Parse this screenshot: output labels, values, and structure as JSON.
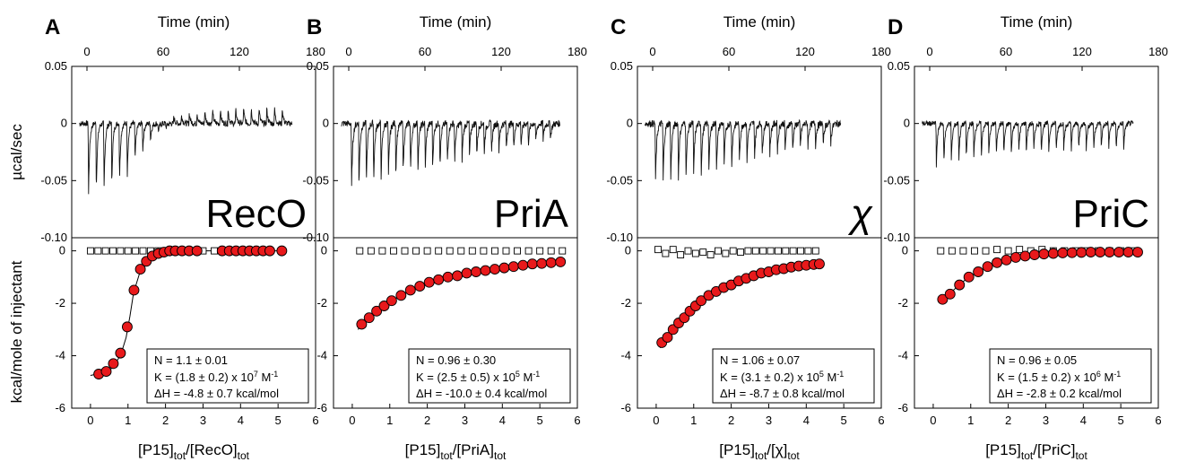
{
  "chart_data": {
    "type": "scatter",
    "shared": {
      "top_xlabel": "Time (min)",
      "top_ylabel": "µcal/sec",
      "bottom_ylabel": "kcal/mole of injectant",
      "top_xticks": [
        "0",
        "60",
        "120",
        "180"
      ],
      "top_yticks": [
        "0.05",
        "0",
        "-0.05",
        "-0.10"
      ],
      "bottom_yticks": [
        "0",
        "-2",
        "-4",
        "-6"
      ],
      "bottom_xticks": [
        "0",
        "1",
        "2",
        "3",
        "4",
        "5",
        "6"
      ],
      "top_xlim": [
        -12,
        180
      ],
      "top_ylim": [
        -0.1,
        0.05
      ],
      "bottom_xlim": [
        -0.5,
        6
      ],
      "bottom_ylim": [
        -6,
        0.5
      ]
    },
    "panels": [
      {
        "letter": "A",
        "protein_label": "RecO",
        "xlabel_pre": "[P15]",
        "xlabel_sub1": "tot",
        "xlabel_mid": "/[RecO]",
        "xlabel_sub2": "tot",
        "fit_box": {
          "line1": "N = 1.1 ± 0.01",
          "line2": "K = (1.8 ± 0.2) x 10",
          "line2_exp": "7",
          "line2_unit": " M",
          "line2_unit_exp": "-1",
          "line3": "ΔH = -4.8 ± 0.7 kcal/mol"
        },
        "injections": {
          "first_t": 1,
          "interval": 6.1,
          "count": 26,
          "noise": 0.0025
        },
        "peaks": [
          -0.082,
          -0.08,
          -0.078,
          -0.072,
          -0.066,
          -0.059,
          -0.044,
          -0.032,
          -0.02,
          -0.01,
          -0.005,
          0.008,
          0.01,
          0.012,
          0.013,
          0.014,
          0.015,
          0.016,
          0.017,
          0.017,
          0.018,
          0.018,
          0.018,
          0.018,
          0.018,
          0.018
        ],
        "filled_points": {
          "x": [
            0.22,
            0.42,
            0.61,
            0.8,
            0.98,
            1.16,
            1.33,
            1.49,
            1.65,
            1.81,
            1.96,
            2.11,
            2.26,
            2.44,
            2.63,
            2.84,
            3.51,
            3.7,
            3.88,
            4.06,
            4.24,
            4.42,
            4.6,
            4.78,
            5.1
          ],
          "y": [
            -4.7,
            -4.6,
            -4.3,
            -3.9,
            -2.9,
            -1.5,
            -0.7,
            -0.4,
            -0.2,
            -0.1,
            -0.05,
            0,
            0,
            0,
            0,
            0,
            0,
            0,
            0,
            0,
            0,
            0,
            0,
            0,
            0
          ]
        },
        "fit_line": {
          "x": [
            0.0,
            0.5,
            0.8,
            0.95,
            1.05,
            1.15,
            1.3,
            1.5,
            1.8,
            2.2,
            3.0,
            5.1
          ],
          "y": [
            -4.75,
            -4.6,
            -4.0,
            -3.3,
            -2.5,
            -1.6,
            -0.9,
            -0.4,
            -0.15,
            -0.03,
            0,
            0
          ]
        },
        "open_points": {
          "x": [
            0.0,
            0.2,
            0.4,
            0.6,
            0.8,
            1.0,
            1.2,
            1.4,
            1.6,
            1.8,
            2.0,
            2.2,
            2.4,
            2.6,
            2.8,
            3.0,
            3.3
          ],
          "y": [
            0,
            0,
            0,
            0,
            0,
            0,
            0,
            0,
            0,
            0,
            0,
            0,
            0,
            0,
            0,
            0,
            0
          ]
        }
      },
      {
        "letter": "B",
        "protein_label": "PriA",
        "xlabel_pre": "[P15]",
        "xlabel_sub1": "tot",
        "xlabel_mid": "/[PriA]",
        "xlabel_sub2": "tot",
        "fit_box": {
          "line1": "N = 0.96 ± 0.30",
          "line2": "K = (2.5 ± 0.5) x 10",
          "line2_exp": "5",
          "line2_unit": " M",
          "line2_unit_exp": "-1",
          "line3": "ΔH = -10.0 ± 0.4 kcal/mol"
        },
        "injections": {
          "first_t": 2,
          "interval": 5.8,
          "count": 28,
          "noise": 0.003
        },
        "peaks": [
          -0.074,
          -0.072,
          -0.07,
          -0.067,
          -0.065,
          -0.062,
          -0.06,
          -0.058,
          -0.056,
          -0.054,
          -0.052,
          -0.05,
          -0.048,
          -0.046,
          -0.044,
          -0.042,
          -0.04,
          -0.038,
          -0.036,
          -0.034,
          -0.032,
          -0.03,
          -0.028,
          -0.026,
          -0.024,
          -0.022,
          -0.02,
          -0.018
        ],
        "filled_points": {
          "x": [
            0.25,
            0.45,
            0.65,
            0.85,
            1.05,
            1.3,
            1.55,
            1.8,
            2.05,
            2.3,
            2.55,
            2.8,
            3.05,
            3.3,
            3.55,
            3.8,
            4.05,
            4.3,
            4.55,
            4.8,
            5.05,
            5.3,
            5.55
          ],
          "y": [
            -2.8,
            -2.55,
            -2.3,
            -2.1,
            -1.9,
            -1.7,
            -1.5,
            -1.35,
            -1.2,
            -1.1,
            -1.0,
            -0.95,
            -0.85,
            -0.8,
            -0.75,
            -0.7,
            -0.65,
            -0.6,
            -0.55,
            -0.5,
            -0.48,
            -0.45,
            -0.42
          ]
        },
        "fit_line": {
          "x": [
            0.15,
            0.5,
            1.0,
            1.5,
            2.0,
            2.5,
            3.0,
            3.5,
            4.0,
            4.5,
            5.0,
            5.6
          ],
          "y": [
            -3.0,
            -2.5,
            -1.95,
            -1.55,
            -1.25,
            -1.05,
            -0.9,
            -0.78,
            -0.68,
            -0.6,
            -0.52,
            -0.45
          ]
        },
        "open_points": {
          "x": [
            0.2,
            0.5,
            0.8,
            1.1,
            1.4,
            1.7,
            2.0,
            2.3,
            2.6,
            2.9,
            3.2,
            3.5,
            3.8,
            4.1,
            4.4,
            4.7,
            5.0,
            5.3,
            5.6
          ],
          "y": [
            0,
            0,
            0,
            0,
            0,
            0,
            0,
            0,
            0,
            0,
            0,
            0,
            0,
            0,
            0,
            0,
            0,
            0,
            0
          ]
        }
      },
      {
        "letter": "C",
        "protein_label": "χ",
        "xlabel_pre": "[P15]",
        "xlabel_sub1": "tot",
        "xlabel_mid": "/[χ]",
        "xlabel_sub2": "tot",
        "fit_box": {
          "line1": "N = 1.06 ± 0.07",
          "line2": "K = (3.1 ± 0.2) x 10",
          "line2_exp": "5",
          "line2_unit": " M",
          "line2_unit_exp": "-1",
          "line3": "ΔH = -8.7 ± 0.8 kcal/mol"
        },
        "injections": {
          "first_t": 2,
          "interval": 6.0,
          "count": 24,
          "noise": 0.003
        },
        "peaks": [
          -0.068,
          -0.067,
          -0.066,
          -0.064,
          -0.062,
          -0.06,
          -0.058,
          -0.055,
          -0.053,
          -0.05,
          -0.048,
          -0.045,
          -0.043,
          -0.04,
          -0.038,
          -0.036,
          -0.034,
          -0.032,
          -0.03,
          -0.028,
          -0.027,
          -0.026,
          -0.025,
          -0.024
        ],
        "filled_points": {
          "x": [
            0.15,
            0.3,
            0.45,
            0.6,
            0.75,
            0.9,
            1.05,
            1.2,
            1.4,
            1.6,
            1.8,
            2.0,
            2.2,
            2.4,
            2.6,
            2.8,
            3.0,
            3.2,
            3.4,
            3.6,
            3.8,
            4.0,
            4.2,
            4.35
          ],
          "y": [
            -3.5,
            -3.3,
            -3.0,
            -2.75,
            -2.55,
            -2.3,
            -2.1,
            -1.9,
            -1.7,
            -1.55,
            -1.4,
            -1.3,
            -1.15,
            -1.05,
            -0.95,
            -0.85,
            -0.8,
            -0.72,
            -0.68,
            -0.62,
            -0.58,
            -0.55,
            -0.52,
            -0.5
          ]
        },
        "fit_line": {
          "x": [
            0.1,
            0.4,
            0.8,
            1.2,
            1.6,
            2.0,
            2.5,
            3.0,
            3.5,
            4.0,
            4.35
          ],
          "y": [
            -3.7,
            -3.1,
            -2.45,
            -1.95,
            -1.6,
            -1.32,
            -1.05,
            -0.85,
            -0.7,
            -0.58,
            -0.52
          ]
        },
        "open_points": {
          "x": [
            0.05,
            0.25,
            0.45,
            0.65,
            0.85,
            1.05,
            1.25,
            1.45,
            1.65,
            1.85,
            2.05,
            2.25,
            2.45,
            2.65,
            2.85,
            3.05,
            3.25,
            3.45,
            3.65,
            3.85,
            4.05,
            4.25
          ],
          "y": [
            0.05,
            -0.1,
            0.05,
            -0.15,
            0.0,
            -0.1,
            -0.05,
            -0.15,
            0.0,
            -0.1,
            0.0,
            -0.05,
            0.0,
            0.0,
            0.0,
            0.0,
            0.0,
            0.0,
            0.0,
            0.0,
            0.0,
            0.0
          ]
        }
      },
      {
        "letter": "D",
        "protein_label": "PriC",
        "xlabel_pre": "[P15]",
        "xlabel_sub1": "tot",
        "xlabel_mid": "/[PriC]",
        "xlabel_sub2": "tot",
        "fit_box": {
          "line1": "N = 0.96 ± 0.05",
          "line2": "K = (1.5 ± 0.2) x 10",
          "line2_exp": "6",
          "line2_unit": " M",
          "line2_unit_exp": "-1",
          "line3": "ΔH = -2.8 ± 0.2 kcal/mol"
        },
        "injections": {
          "first_t": 5,
          "interval": 5.9,
          "count": 26,
          "noise": 0.0022
        },
        "peaks": [
          -0.049,
          -0.047,
          -0.045,
          -0.043,
          -0.041,
          -0.04,
          -0.039,
          -0.038,
          -0.037,
          -0.036,
          -0.035,
          -0.034,
          -0.034,
          -0.033,
          -0.033,
          -0.032,
          -0.032,
          -0.031,
          -0.031,
          -0.03,
          -0.03,
          -0.03,
          -0.029,
          -0.029,
          -0.029,
          -0.028
        ],
        "filled_points": {
          "x": [
            0.25,
            0.45,
            0.7,
            0.95,
            1.2,
            1.45,
            1.7,
            1.95,
            2.2,
            2.45,
            2.7,
            2.95,
            3.2,
            3.45,
            3.7,
            3.95,
            4.2,
            4.45,
            4.7,
            4.95,
            5.2,
            5.45
          ],
          "y": [
            -1.85,
            -1.65,
            -1.3,
            -1.0,
            -0.8,
            -0.6,
            -0.45,
            -0.35,
            -0.25,
            -0.2,
            -0.15,
            -0.12,
            -0.1,
            -0.08,
            -0.07,
            -0.06,
            -0.05,
            -0.05,
            -0.05,
            -0.05,
            -0.05,
            -0.05
          ]
        },
        "fit_line": {
          "x": [
            0.2,
            0.5,
            0.9,
            1.3,
            1.8,
            2.3,
            2.8,
            3.5,
            4.5,
            5.5
          ],
          "y": [
            -1.95,
            -1.55,
            -1.05,
            -0.72,
            -0.45,
            -0.28,
            -0.18,
            -0.1,
            -0.06,
            -0.05
          ]
        },
        "open_points": {
          "x": [
            0.2,
            0.5,
            0.8,
            1.1,
            1.4,
            1.7,
            2.0,
            2.3,
            2.6,
            2.9,
            3.2,
            3.5,
            3.8,
            4.1,
            4.4,
            4.7,
            5.0,
            5.3
          ],
          "y": [
            0,
            0,
            0,
            0,
            0,
            0.05,
            0,
            0.05,
            0,
            0.05,
            0,
            0,
            0,
            0,
            0,
            0,
            0,
            0
          ]
        }
      }
    ]
  }
}
